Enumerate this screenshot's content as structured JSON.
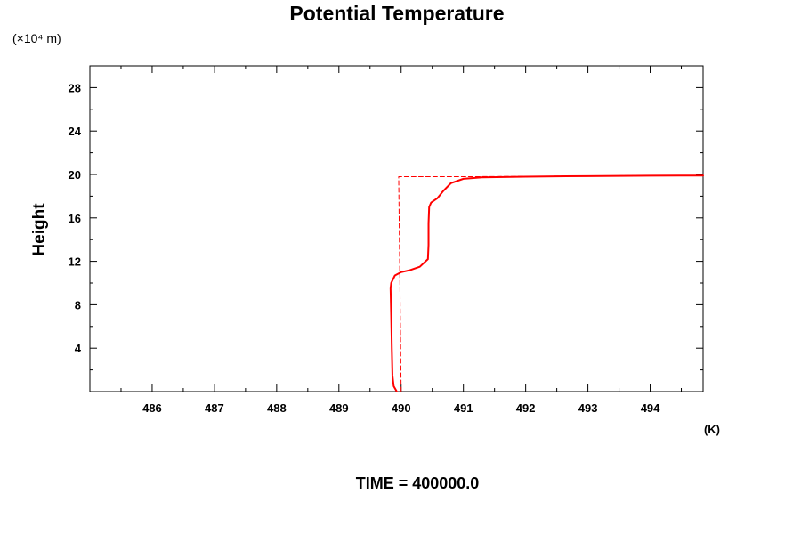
{
  "chart_data": {
    "type": "line",
    "title": "Potential Temperature",
    "ylabel": "Height",
    "y_unit": "(×10⁴ m)",
    "x_unit": "(K)",
    "footer": "TIME = 400000.0",
    "xlim": [
      485.0,
      494.85
    ],
    "ylim": [
      0,
      30
    ],
    "x_ticks": [
      486,
      487,
      488,
      489,
      490,
      491,
      492,
      493,
      494
    ],
    "x_tick_labels": [
      "486",
      "487",
      "488",
      "489",
      "490",
      "491",
      "492",
      "493",
      "494"
    ],
    "y_ticks": [
      4,
      8,
      12,
      16,
      20,
      24,
      28
    ],
    "y_tick_labels": [
      "4",
      "8",
      "12",
      "16",
      "20",
      "24",
      "28"
    ],
    "series": [
      {
        "style": "solid",
        "color": "#ff0000",
        "points": [
          [
            489.93,
            0.0
          ],
          [
            489.88,
            0.5
          ],
          [
            489.86,
            1.5
          ],
          [
            489.85,
            4.0
          ],
          [
            489.84,
            7.0
          ],
          [
            489.83,
            9.5
          ],
          [
            489.84,
            10.0
          ],
          [
            489.9,
            10.7
          ],
          [
            490.0,
            11.0
          ],
          [
            490.15,
            11.2
          ],
          [
            490.3,
            11.5
          ],
          [
            490.43,
            12.2
          ],
          [
            490.44,
            13.5
          ],
          [
            490.44,
            15.5
          ],
          [
            490.45,
            17.0
          ],
          [
            490.48,
            17.4
          ],
          [
            490.58,
            17.8
          ],
          [
            490.68,
            18.5
          ],
          [
            490.8,
            19.2
          ],
          [
            491.0,
            19.6
          ],
          [
            491.3,
            19.73
          ],
          [
            492.0,
            19.8
          ],
          [
            493.0,
            19.85
          ],
          [
            494.0,
            19.89
          ],
          [
            494.85,
            19.9
          ]
        ]
      },
      {
        "style": "dashed",
        "color": "#ff0000",
        "points": [
          [
            490.0,
            0.0
          ],
          [
            489.96,
            19.8
          ],
          [
            491.3,
            19.8
          ],
          [
            494.0,
            19.9
          ]
        ]
      }
    ]
  }
}
